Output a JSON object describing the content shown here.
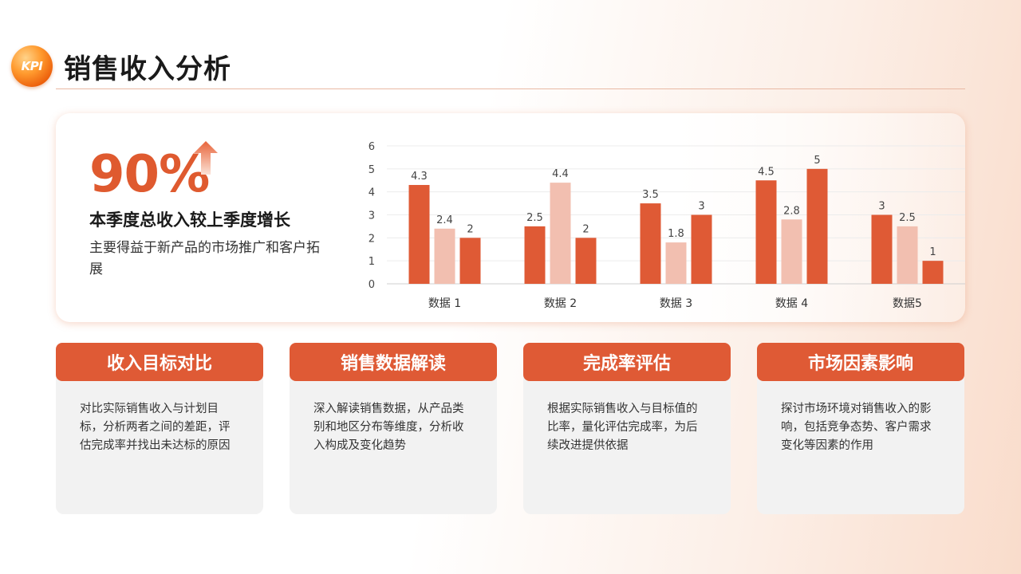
{
  "title": "销售收入分析",
  "logo_text": "KPI",
  "kpi": {
    "value": "90%",
    "headline": "本季度总收入较上季度增长",
    "description": "主要得益于新产品的市场推广和客户拓展"
  },
  "colors": {
    "accent": "#df5a35",
    "series_dark": "#df5a35",
    "series_light": "#f2bfb0",
    "card_body": "#f2f2f2"
  },
  "chart_data": {
    "type": "bar",
    "categories": [
      "数据 1",
      "数据 2",
      "数据 3",
      "数据 4",
      "数据5"
    ],
    "series": [
      {
        "values": [
          4.3,
          2.5,
          3.5,
          4.5,
          3
        ],
        "color": "#df5a35"
      },
      {
        "values": [
          2.4,
          4.4,
          1.8,
          2.8,
          2.5
        ],
        "color": "#f2bfb0"
      },
      {
        "values": [
          2,
          2,
          3,
          5,
          1
        ],
        "color": "#df5a35"
      }
    ],
    "ylim": [
      0,
      6
    ],
    "yticks": [
      0,
      1,
      2,
      3,
      4,
      5,
      6
    ],
    "grid": true,
    "legend": "none",
    "data_labels": true
  },
  "cards": [
    {
      "title": "收入目标对比",
      "text": "对比实际销售收入与计划目标，分析两者之间的差距，评估完成率并找出未达标的原因"
    },
    {
      "title": "销售数据解读",
      "text": "深入解读销售数据，从产品类别和地区分布等维度，分析收入构成及变化趋势"
    },
    {
      "title": "完成率评估",
      "text": "根据实际销售收入与目标值的比率，量化评估完成率，为后续改进提供依据"
    },
    {
      "title": "市场因素影响",
      "text": "探讨市场环境对销售收入的影响，包括竞争态势、客户需求变化等因素的作用"
    }
  ]
}
